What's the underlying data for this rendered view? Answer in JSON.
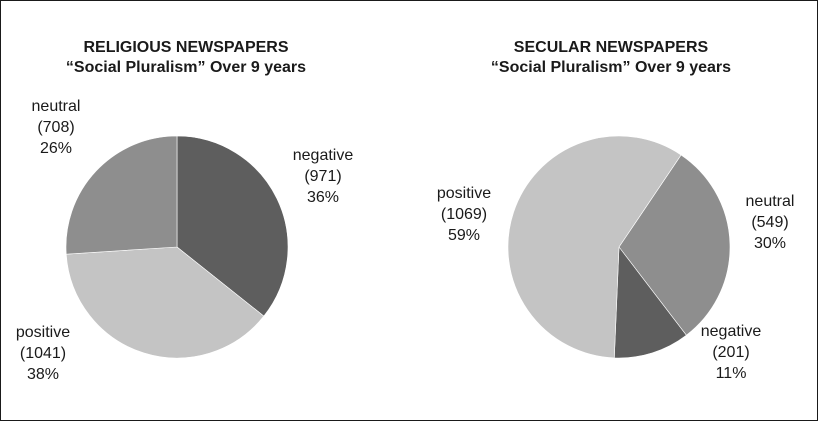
{
  "chart_data": [
    {
      "type": "pie",
      "title": "RELIGIOUS NEWSPAPERS",
      "subtitle": "“Social Pluralism” Over 9 years",
      "slices": [
        {
          "label": "negative",
          "count": "(971)",
          "percent": "36%",
          "value": 971,
          "color": "#5e5e5e"
        },
        {
          "label": "positive",
          "count": "(1041)",
          "percent": "38%",
          "value": 1041,
          "color": "#c4c4c4"
        },
        {
          "label": "neutral",
          "count": "(708)",
          "percent": "26%",
          "value": 708,
          "color": "#8e8e8e"
        }
      ]
    },
    {
      "type": "pie",
      "title": "SECULAR NEWSPAPERS",
      "subtitle": "“Social Pluralism” Over 9 years",
      "slices": [
        {
          "label": "neutral",
          "count": "(549)",
          "percent": "30%",
          "value": 549,
          "color": "#8e8e8e"
        },
        {
          "label": "negative",
          "count": "(201)",
          "percent": "11%",
          "value": 201,
          "color": "#5e5e5e"
        },
        {
          "label": "positive",
          "count": "(1069)",
          "percent": "59%",
          "value": 1069,
          "color": "#c4c4c4"
        }
      ]
    }
  ]
}
